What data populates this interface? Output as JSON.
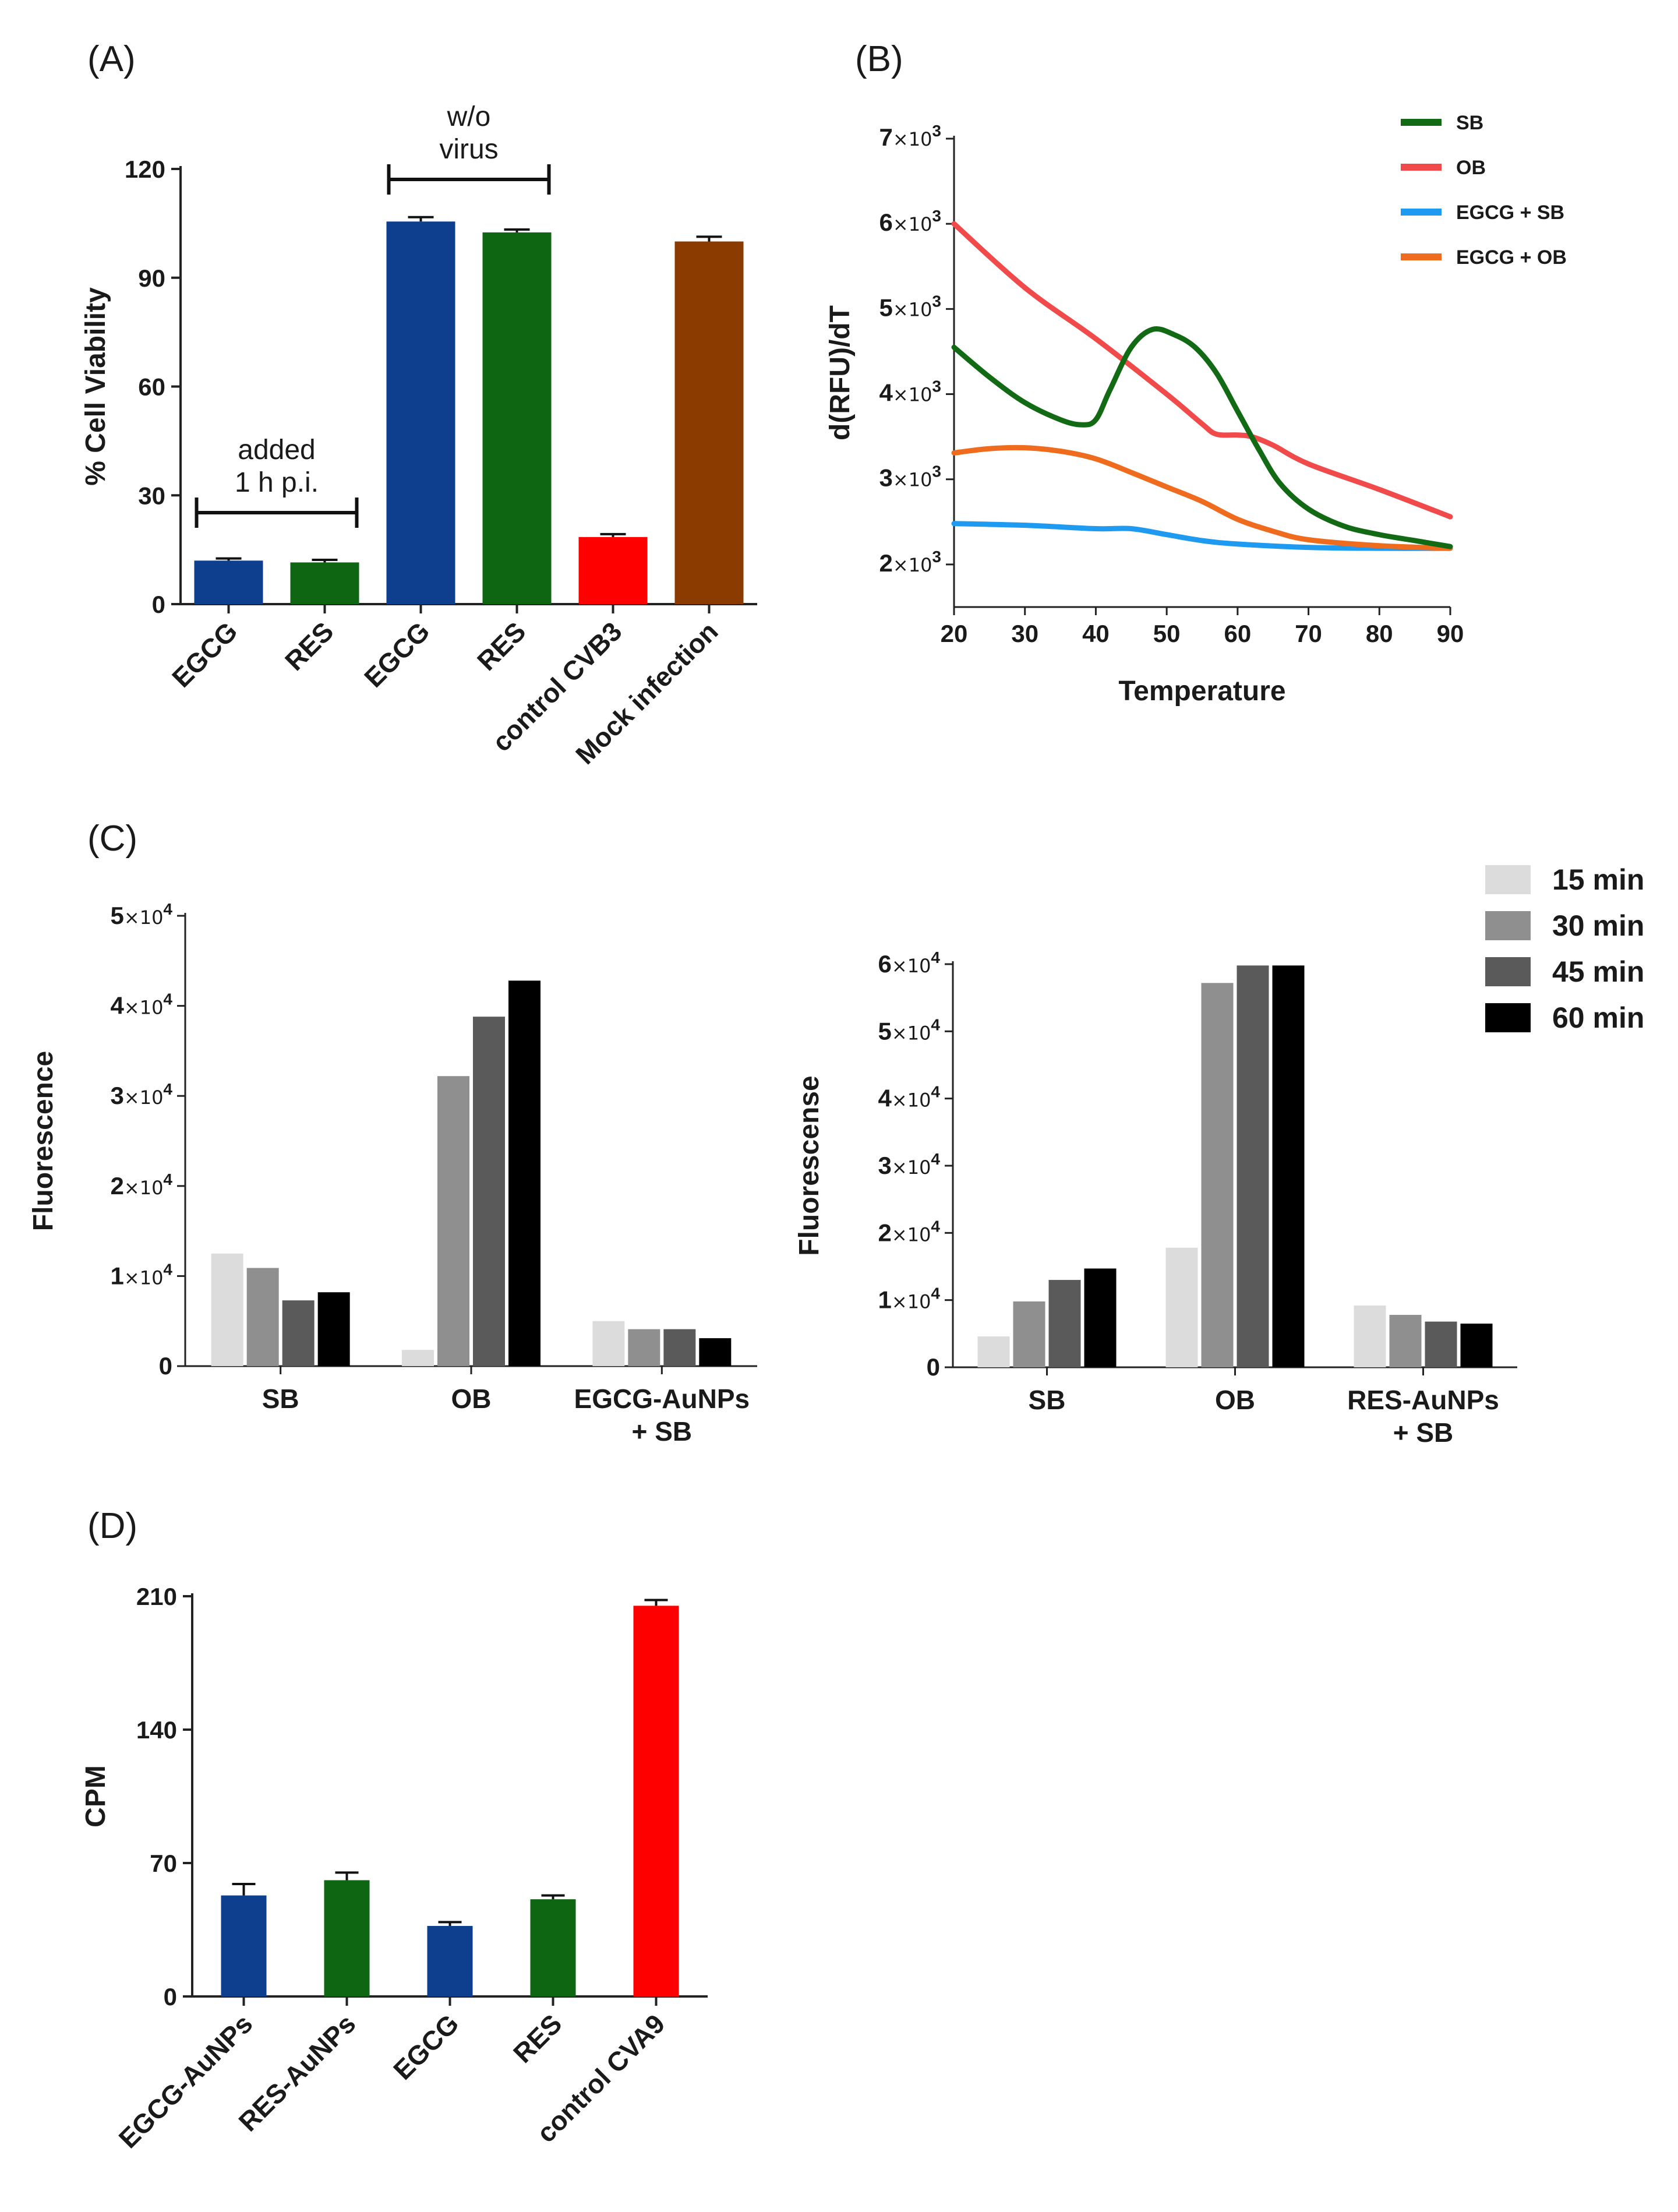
{
  "panels": {
    "A": {
      "letter": "(A)",
      "chart_data": {
        "type": "bar",
        "ylabel": "% Cell Viability",
        "xlabel": "",
        "ylim": [
          0,
          120
        ],
        "yticks": [
          "0",
          "30",
          "60",
          "90",
          "120"
        ],
        "categories": [
          "EGCG",
          "RES",
          "EGCG",
          "RES",
          "control CVB3",
          "Mock infection"
        ],
        "values": [
          12,
          11.5,
          105.5,
          102.5,
          18.5,
          100
        ],
        "errors": [
          0.6,
          0.7,
          1.2,
          0.8,
          0.8,
          1.3
        ],
        "colors": [
          "#0d3f8e",
          "#0f6612",
          "#0d3f8e",
          "#0f6612",
          "#ff0000",
          "#8b3a00"
        ],
        "annotations": [
          {
            "lines": [
              "added",
              "1 h p.i."
            ],
            "span": [
              0,
              1
            ]
          },
          {
            "lines": [
              "w/o",
              "virus"
            ],
            "span": [
              2,
              3
            ]
          }
        ]
      }
    },
    "B": {
      "letter": "(B)",
      "chart_data": {
        "type": "line",
        "xlabel": "Temperature",
        "ylabel": "d(RFU)/dT",
        "xlim": [
          20,
          90
        ],
        "ylim": [
          1500,
          7000
        ],
        "xticks": [
          "20",
          "30",
          "40",
          "50",
          "60",
          "70",
          "80",
          "90"
        ],
        "ytick_values": [
          2000,
          3000,
          4000,
          5000,
          6000,
          7000
        ],
        "ytick_bases": [
          "2",
          "3",
          "4",
          "5",
          "6",
          "7"
        ],
        "ytick_mult": "×10",
        "ytick_exp": "3",
        "legend_position": "top-right",
        "series": [
          {
            "name": "SB",
            "color": "#126b14",
            "x": [
              20,
              25,
              30,
              35,
              38,
              40,
              42,
              45,
              48,
              51,
              54,
              57,
              60,
              63,
              66,
              70,
              75,
              80,
              85,
              90
            ],
            "y": [
              4550,
              4200,
              3900,
              3700,
              3640,
              3700,
              4050,
              4550,
              4760,
              4700,
              4550,
              4250,
              3800,
              3350,
              2950,
              2650,
              2450,
              2350,
              2280,
              2210
            ]
          },
          {
            "name": "OB",
            "color": "#f04a4a",
            "x": [
              20,
              30,
              40,
              50,
              55,
              57,
              60,
              62,
              65,
              70,
              80,
              90
            ],
            "y": [
              6000,
              5250,
              4650,
              4000,
              3650,
              3530,
              3520,
              3500,
              3400,
              3180,
              2880,
              2560
            ]
          },
          {
            "name": "EGCG + SB",
            "color": "#1e9bf0",
            "x": [
              20,
              30,
              40,
              45,
              50,
              55,
              60,
              70,
              80,
              90
            ],
            "y": [
              2480,
              2460,
              2420,
              2420,
              2350,
              2280,
              2240,
              2200,
              2190,
              2190
            ]
          },
          {
            "name": "EGCG + OB",
            "color": "#ef6b1d",
            "x": [
              20,
              25,
              30,
              35,
              40,
              45,
              50,
              55,
              60,
              65,
              70,
              80,
              90
            ],
            "y": [
              3310,
              3360,
              3370,
              3330,
              3240,
              3080,
              2910,
              2740,
              2530,
              2390,
              2290,
              2220,
              2190
            ]
          }
        ]
      }
    },
    "C": {
      "letter": "(C)",
      "legend": [
        {
          "name": "15 min",
          "color": "#dcdcdc"
        },
        {
          "name": "30 min",
          "color": "#8f8f8f"
        },
        {
          "name": "45 min",
          "color": "#5a5a5a"
        },
        {
          "name": "60 min",
          "color": "#000000"
        }
      ],
      "charts": [
        {
          "chart_data": {
            "type": "bar",
            "ylabel": "Fluorescence",
            "ylim": [
              0,
              50000
            ],
            "ytick_values": [
              0,
              10000,
              20000,
              30000,
              40000,
              50000
            ],
            "ytick_labels": [
              "0",
              "1",
              "2",
              "3",
              "4",
              "5"
            ],
            "ytick_mult": "×10",
            "ytick_exp": "4",
            "categories": [
              "SB",
              "OB",
              "EGCG-AuNPs\n+ SB"
            ],
            "series": [
              {
                "name": "15 min",
                "values": [
                  12500,
                  1800,
                  5000
                ]
              },
              {
                "name": "30 min",
                "values": [
                  10900,
                  32200,
                  4100
                ]
              },
              {
                "name": "45 min",
                "values": [
                  7300,
                  38800,
                  4100
                ]
              },
              {
                "name": "60 min",
                "values": [
                  8200,
                  42800,
                  3100
                ]
              }
            ]
          }
        },
        {
          "chart_data": {
            "type": "bar",
            "ylabel": "Fluorescense",
            "ylim": [
              0,
              60000
            ],
            "ytick_values": [
              0,
              10000,
              20000,
              30000,
              40000,
              50000,
              60000
            ],
            "ytick_labels": [
              "0",
              "1",
              "2",
              "3",
              "4",
              "5",
              "6"
            ],
            "ytick_mult": "×10",
            "ytick_exp": "4",
            "categories": [
              "SB",
              "OB",
              "RES-AuNPs\n+ SB"
            ],
            "series": [
              {
                "name": "15 min",
                "values": [
                  4600,
                  17800,
                  9200
                ]
              },
              {
                "name": "30 min",
                "values": [
                  9800,
                  57200,
                  7800
                ]
              },
              {
                "name": "45 min",
                "values": [
                  13000,
                  59800,
                  6800
                ]
              },
              {
                "name": "60 min",
                "values": [
                  14700,
                  59800,
                  6500
                ]
              }
            ]
          }
        }
      ]
    },
    "D": {
      "letter": "(D)",
      "chart_data": {
        "type": "bar",
        "ylabel": "CPM",
        "ylim": [
          0,
          210
        ],
        "yticks": [
          "0",
          "70",
          "140",
          "210"
        ],
        "categories": [
          "EGCG-AuNPs",
          "RES-AuNPs",
          "EGCG",
          "RES",
          "control CVA9"
        ],
        "values": [
          53,
          61,
          37,
          51,
          205
        ],
        "errors": [
          6,
          4,
          2,
          2,
          3
        ],
        "colors": [
          "#0d3f8e",
          "#0f6612",
          "#0d3f8e",
          "#0f6612",
          "#ff0000"
        ]
      }
    }
  }
}
